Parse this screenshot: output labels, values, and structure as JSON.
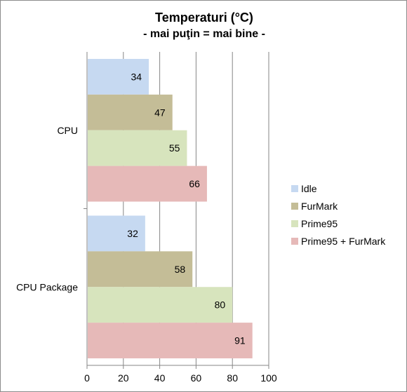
{
  "chart_data": {
    "type": "bar",
    "orientation": "horizontal",
    "title": "Temperaturi (°C)",
    "subtitle": "- mai puţin = mai bine -",
    "categories": [
      "CPU",
      "CPU Package"
    ],
    "series": [
      {
        "name": "Idle",
        "values": [
          34,
          32
        ],
        "color": "#c6d9f1"
      },
      {
        "name": "FurMark",
        "values": [
          47,
          58
        ],
        "color": "#c4bd97"
      },
      {
        "name": "Prime95",
        "values": [
          55,
          80
        ],
        "color": "#d7e4bd"
      },
      {
        "name": "Prime95 + FurMark",
        "values": [
          66,
          91
        ],
        "color": "#e6b9b8"
      }
    ],
    "xlim": [
      0,
      100
    ],
    "xticks": [
      0,
      20,
      40,
      60,
      80,
      100
    ],
    "grid": true,
    "legend_position": "right"
  }
}
